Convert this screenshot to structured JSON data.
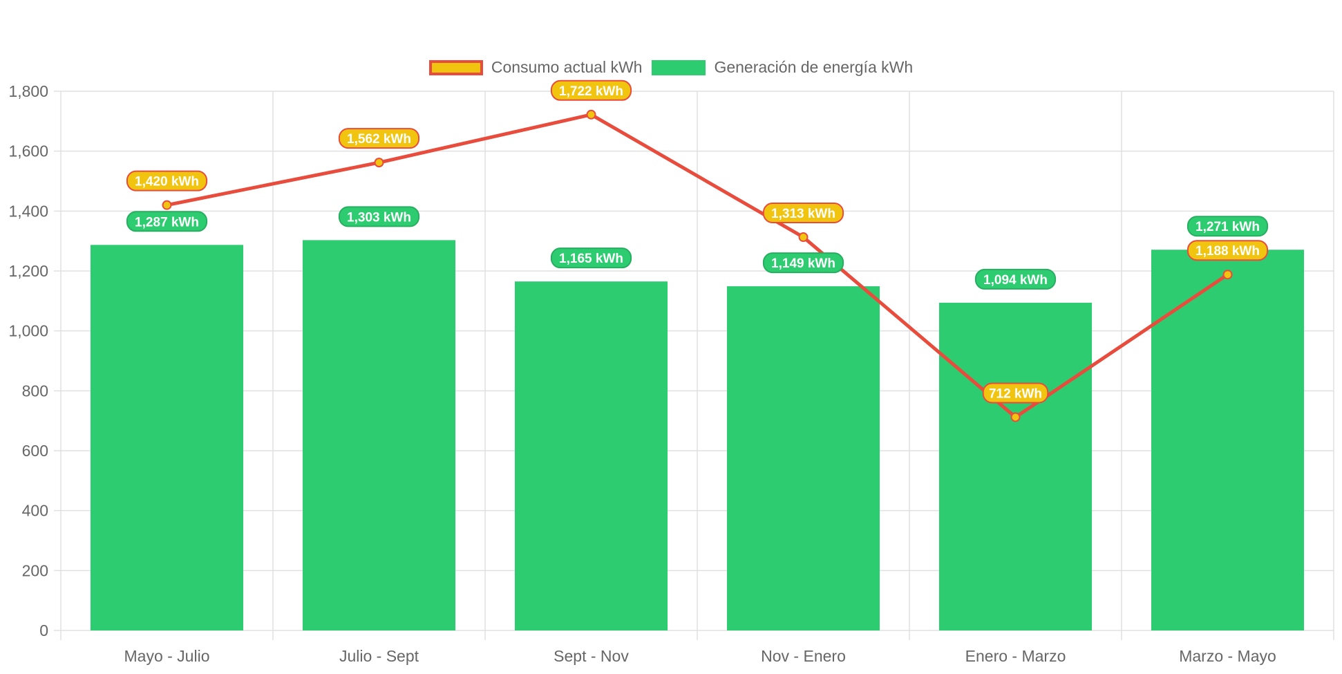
{
  "colors": {
    "bar": "#2ecc71",
    "bar_label_bg": "#2ecc71",
    "bar_label_border": "#27ae60",
    "line": "#e74c3c",
    "point_fill": "#f1c40f",
    "line_label_bg": "#f1c40f",
    "grid": "#e0e0e0",
    "tick_text": "#666666"
  },
  "chart_data": {
    "type": "bar",
    "categories": [
      "Mayo - Julio",
      "Julio - Sept",
      "Sept - Nov",
      "Nov - Enero",
      "Enero - Marzo",
      "Marzo - Mayo"
    ],
    "series": [
      {
        "name": "Consumo actual kWh",
        "type": "line",
        "values": [
          1420,
          1562,
          1722,
          1313,
          712,
          1188
        ],
        "labels": [
          "1,420 kWh",
          "1,562 kWh",
          "1,722 kWh",
          "1,313 kWh",
          "712 kWh",
          "1,188 kWh"
        ]
      },
      {
        "name": "Generación de energía kWh",
        "type": "bar",
        "values": [
          1287,
          1303,
          1165,
          1149,
          1094,
          1271
        ],
        "labels": [
          "1,287 kWh",
          "1,303 kWh",
          "1,165 kWh",
          "1,149 kWh",
          "1,094 kWh",
          "1,271 kWh"
        ]
      }
    ],
    "ylim": [
      0,
      1800
    ],
    "yticks": [
      "0",
      "200",
      "400",
      "600",
      "800",
      "1,000",
      "1,200",
      "1,400",
      "1,600",
      "1,800"
    ],
    "grid": true,
    "legend_position": "top-center"
  }
}
